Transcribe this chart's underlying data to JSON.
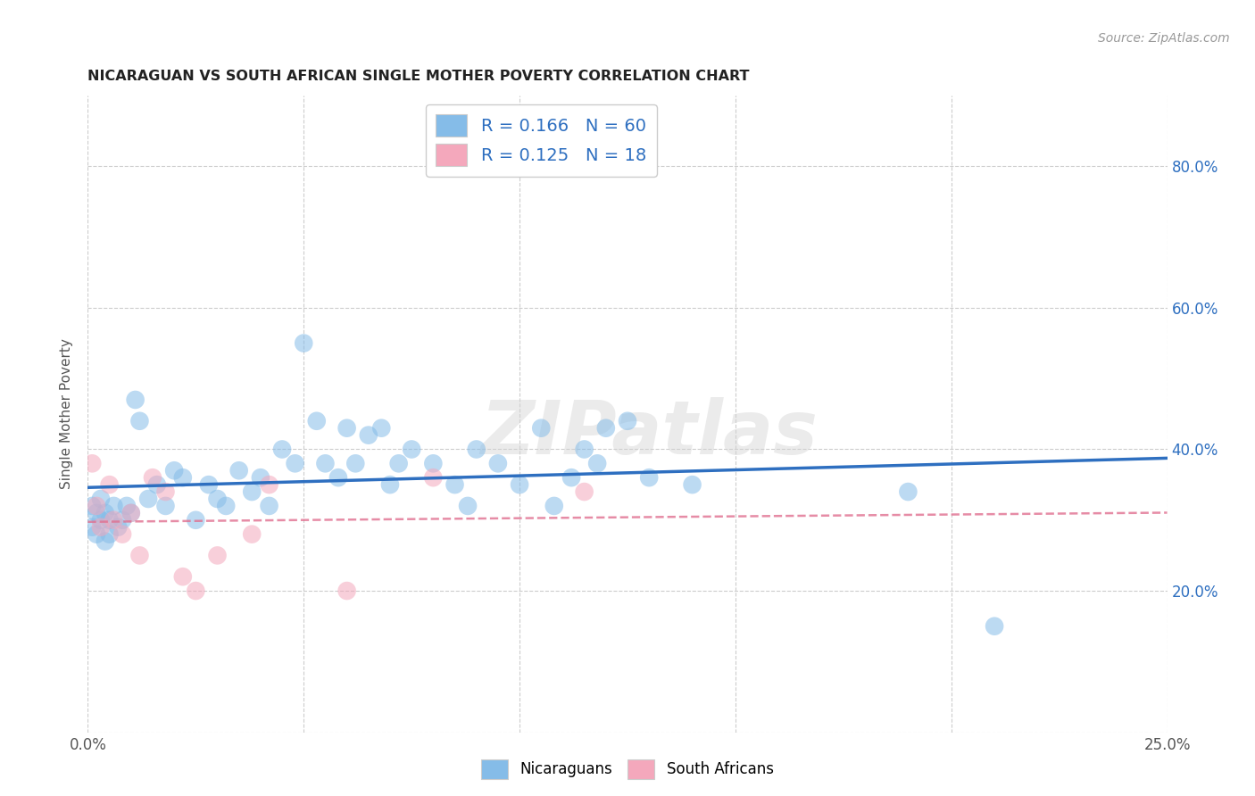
{
  "title": "NICARAGUAN VS SOUTH AFRICAN SINGLE MOTHER POVERTY CORRELATION CHART",
  "source": "Source: ZipAtlas.com",
  "ylabel": "Single Mother Poverty",
  "xlim": [
    0.0,
    0.25
  ],
  "ylim": [
    0.0,
    0.9
  ],
  "R_nicaraguan": 0.166,
  "N_nicaraguan": 60,
  "R_south_african": 0.125,
  "N_south_african": 18,
  "color_nicaraguan": "#85BCE8",
  "color_south_african": "#F4A8BC",
  "color_line_nicaraguan": "#2E6FC0",
  "color_line_south_african": "#E07090",
  "watermark": "ZIPatlas",
  "nicaraguan_x": [
    0.001,
    0.001,
    0.002,
    0.002,
    0.003,
    0.003,
    0.004,
    0.004,
    0.005,
    0.005,
    0.006,
    0.007,
    0.008,
    0.009,
    0.01,
    0.011,
    0.012,
    0.014,
    0.016,
    0.018,
    0.02,
    0.022,
    0.025,
    0.028,
    0.03,
    0.032,
    0.035,
    0.038,
    0.04,
    0.042,
    0.045,
    0.048,
    0.05,
    0.053,
    0.055,
    0.058,
    0.06,
    0.062,
    0.065,
    0.068,
    0.07,
    0.072,
    0.075,
    0.08,
    0.085,
    0.088,
    0.09,
    0.095,
    0.1,
    0.105,
    0.108,
    0.112,
    0.115,
    0.118,
    0.12,
    0.125,
    0.13,
    0.14,
    0.19,
    0.21
  ],
  "nicaraguan_y": [
    0.32,
    0.29,
    0.31,
    0.28,
    0.33,
    0.3,
    0.27,
    0.31,
    0.3,
    0.28,
    0.32,
    0.29,
    0.3,
    0.32,
    0.31,
    0.47,
    0.44,
    0.33,
    0.35,
    0.32,
    0.37,
    0.36,
    0.3,
    0.35,
    0.33,
    0.32,
    0.37,
    0.34,
    0.36,
    0.32,
    0.4,
    0.38,
    0.55,
    0.44,
    0.38,
    0.36,
    0.43,
    0.38,
    0.42,
    0.43,
    0.35,
    0.38,
    0.4,
    0.38,
    0.35,
    0.32,
    0.4,
    0.38,
    0.35,
    0.43,
    0.32,
    0.36,
    0.4,
    0.38,
    0.43,
    0.44,
    0.36,
    0.35,
    0.34,
    0.15
  ],
  "south_african_x": [
    0.001,
    0.002,
    0.003,
    0.005,
    0.006,
    0.008,
    0.01,
    0.012,
    0.015,
    0.018,
    0.022,
    0.025,
    0.03,
    0.038,
    0.042,
    0.06,
    0.08,
    0.115
  ],
  "south_african_y": [
    0.38,
    0.32,
    0.29,
    0.35,
    0.3,
    0.28,
    0.31,
    0.25,
    0.36,
    0.34,
    0.22,
    0.2,
    0.25,
    0.28,
    0.35,
    0.2,
    0.36,
    0.34
  ]
}
